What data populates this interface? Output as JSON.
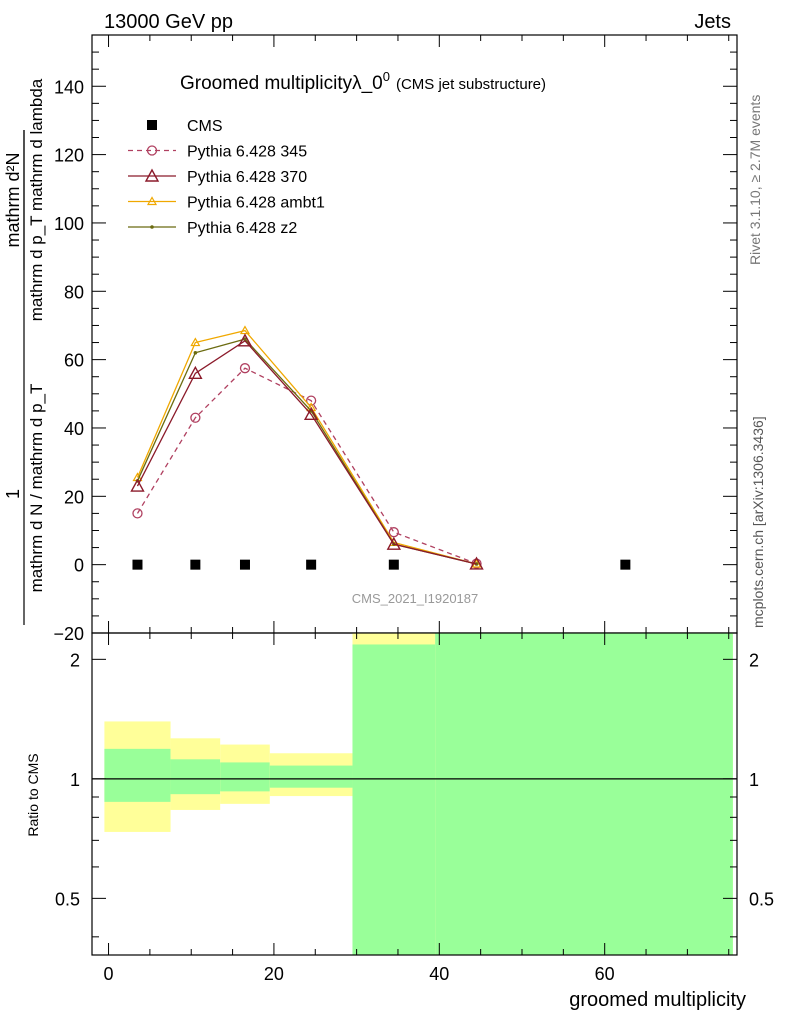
{
  "header": {
    "left": "13000 GeV pp",
    "right": "Jets"
  },
  "side_labels": {
    "rivet": "Rivet 3.1.10, ≥ 2.7M events",
    "mcplots": "mcplots.cern.ch [arXiv:1306.3436]"
  },
  "watermark": "CMS_2021_I1920187",
  "colors": {
    "cms": "#000000",
    "p345": "#b04060",
    "p370": "#8b1a2a",
    "ambt1": "#f0a800",
    "z2": "#6b6b10",
    "band_inner": "#99ff99",
    "band_outer": "#ffff99"
  },
  "chart_data": [
    {
      "type": "line",
      "title_main": "Groomed multiplicityλ_0",
      "title_sup": "0",
      "title_sub": "(CMS jet substructure)",
      "ylabel_numerator": "1",
      "ylabel_denominator": "mathrm d N / mathrm d p_T",
      "ylabel_right_num": "mathrm d²N",
      "ylabel_right_den": "mathrm d p_T mathrm d lambda",
      "xlim": [
        -2,
        76
      ],
      "ylim": [
        -20,
        155
      ],
      "yticks": [
        -20,
        0,
        20,
        40,
        60,
        80,
        100,
        120,
        140
      ],
      "ytick_labels": [
        "−20",
        "0",
        "20",
        "40",
        "60",
        "80",
        "100",
        "120",
        "140"
      ],
      "legend_position": "top-left",
      "series": [
        {
          "name": "CMS",
          "marker": "square",
          "x": [
            3.5,
            10.5,
            16.5,
            24.5,
            34.5,
            62.5
          ],
          "y": [
            0,
            0,
            0,
            0,
            0,
            0
          ]
        },
        {
          "name": "Pythia 6.428 345",
          "marker": "circle",
          "dashed": true,
          "x": [
            3.5,
            10.5,
            16.5,
            24.5,
            34.5,
            44.5
          ],
          "y": [
            15,
            43,
            57.5,
            48,
            9.5,
            0.3
          ]
        },
        {
          "name": "Pythia 6.428 370",
          "marker": "triangle",
          "x": [
            3.5,
            10.5,
            16.5,
            24.5,
            34.5,
            44.5
          ],
          "y": [
            23,
            56,
            65.5,
            44,
            6,
            0.2
          ]
        },
        {
          "name": "Pythia 6.428 ambt1",
          "marker": "triangle-small",
          "x": [
            3.5,
            10.5,
            16.5,
            24.5,
            34.5,
            44.5
          ],
          "y": [
            25.5,
            65,
            68.5,
            46,
            6.5,
            0.2
          ]
        },
        {
          "name": "Pythia 6.428 z2",
          "marker": "dot",
          "x": [
            3.5,
            10.5,
            16.5,
            24.5,
            34.5,
            44.5
          ],
          "y": [
            24.5,
            62,
            66,
            45,
            6,
            0.2
          ]
        }
      ]
    },
    {
      "type": "area",
      "ylabel": "Ratio to CMS",
      "xlabel": "groomed multiplicity",
      "xlim": [
        -2,
        76
      ],
      "ylim": [
        0.36,
        2.33
      ],
      "log_y": true,
      "yticks": [
        0.5,
        1,
        2
      ],
      "ytick_labels": [
        "0.5",
        "1",
        "2"
      ],
      "xticks": [
        0,
        20,
        40,
        60
      ],
      "xtick_labels": [
        "0",
        "20",
        "40",
        "60"
      ],
      "reference_line": 1,
      "bins": [
        {
          "x0": -0.5,
          "x1": 7.5,
          "inner_low": 0.875,
          "inner_high": 1.19,
          "outer_low": 0.735,
          "outer_high": 1.395
        },
        {
          "x0": 7.5,
          "x1": 13.5,
          "inner_low": 0.915,
          "inner_high": 1.12,
          "outer_low": 0.835,
          "outer_high": 1.265
        },
        {
          "x0": 13.5,
          "x1": 19.5,
          "inner_low": 0.93,
          "inner_high": 1.1,
          "outer_low": 0.865,
          "outer_high": 1.22
        },
        {
          "x0": 19.5,
          "x1": 29.5,
          "inner_low": 0.95,
          "inner_high": 1.08,
          "outer_low": 0.905,
          "outer_high": 1.16
        },
        {
          "x0": 29.5,
          "x1": 39.5,
          "inner_low": 0.36,
          "inner_high": 2.18,
          "outer_low": 0.36,
          "outer_high": 2.33
        },
        {
          "x0": 39.5,
          "x1": 75.5,
          "inner_low": 0.36,
          "inner_high": 2.33,
          "outer_low": 0.36,
          "outer_high": 2.33
        }
      ]
    }
  ]
}
